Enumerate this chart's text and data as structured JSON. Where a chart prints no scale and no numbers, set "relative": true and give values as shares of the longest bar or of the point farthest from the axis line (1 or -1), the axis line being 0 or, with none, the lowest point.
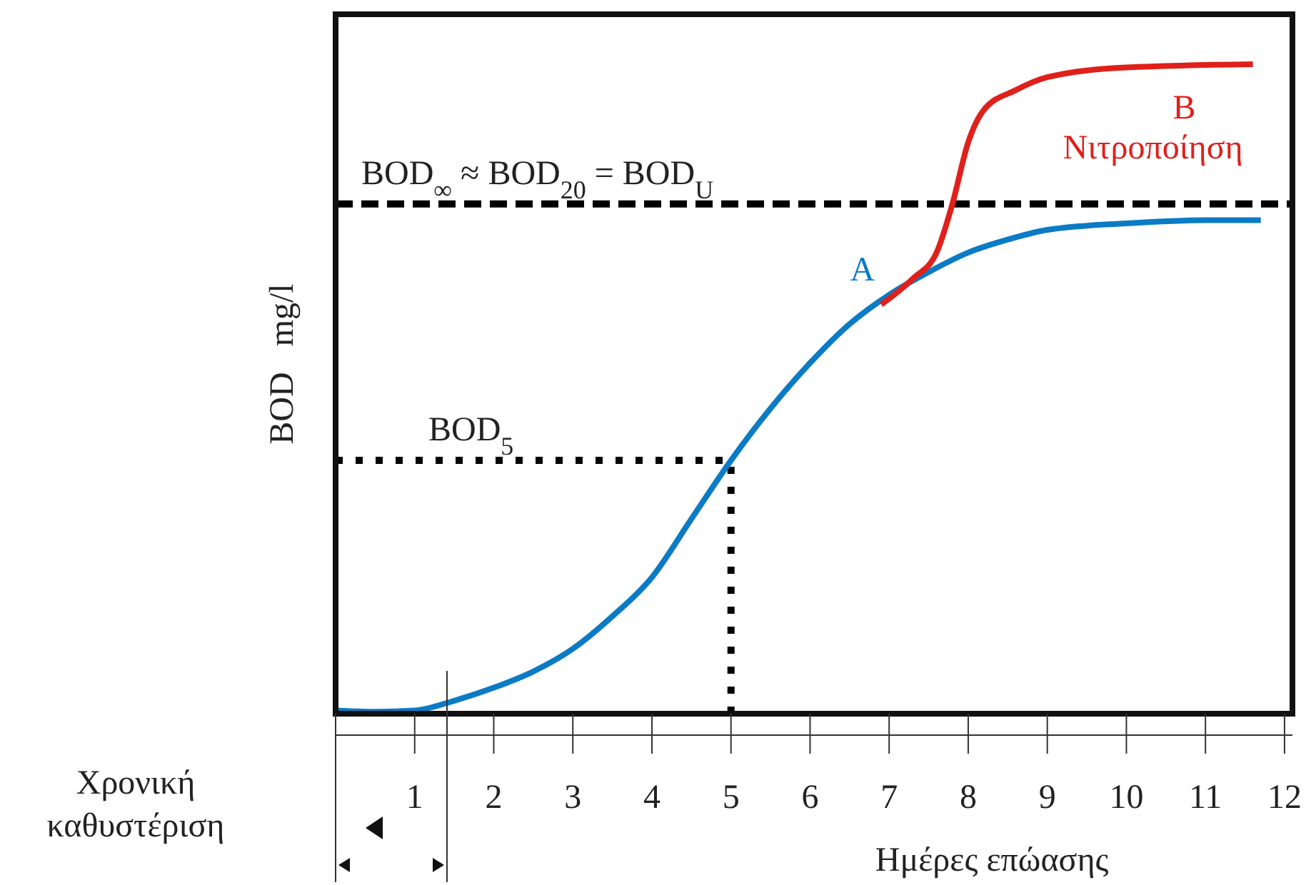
{
  "chart_data": {
    "type": "line",
    "relative": true,
    "xlabel": "Ημέρες επώασης",
    "ylabel": "BOD   mg/l",
    "xlim": [
      0,
      12.1
    ],
    "xticks": [
      1,
      2,
      3,
      4,
      5,
      6,
      7,
      8,
      9,
      10,
      11,
      12
    ],
    "grid": false,
    "line_style": "solid",
    "series": [
      {
        "name": "A",
        "color": "#0a7bc4",
        "x": [
          0,
          0.5,
          1,
          1.5,
          2,
          2.5,
          3,
          3.5,
          4,
          4.5,
          5,
          5.5,
          6,
          6.5,
          7,
          7.5,
          8,
          8.5,
          9,
          10,
          11,
          11.7
        ],
        "values": [
          0.005,
          0.003,
          0.005,
          0.02,
          0.04,
          0.065,
          0.1,
          0.15,
          0.21,
          0.3,
          0.39,
          0.47,
          0.54,
          0.6,
          0.645,
          0.68,
          0.71,
          0.73,
          0.745,
          0.755,
          0.76,
          0.76
        ]
      },
      {
        "name": "B Νιτροποίηση",
        "color": "#e0201b",
        "x": [
          6.9,
          7.3,
          7.6,
          7.8,
          8,
          8.2,
          8.6,
          9,
          10,
          11.6
        ],
        "values": [
          0.63,
          0.67,
          0.71,
          0.785,
          0.88,
          0.93,
          0.96,
          0.98,
          0.995,
          1
        ]
      }
    ],
    "ref_lines": [
      {
        "axis": "y",
        "value": 0.785,
        "label": "BOD$_{∞}$ ≈ BOD$_{20}$ = BOD$_{U}$",
        "line_style": "dashed",
        "color": "#000000"
      },
      {
        "axis": "y",
        "value": 0.39,
        "label": "BOD$_{5}$",
        "line_style": "dotted",
        "color": "#000000"
      },
      {
        "axis": "x",
        "value": 5,
        "line_style": "dotted",
        "color": "#000000"
      }
    ],
    "annotations": [
      "Χρονική καθυστέριση"
    ]
  }
}
